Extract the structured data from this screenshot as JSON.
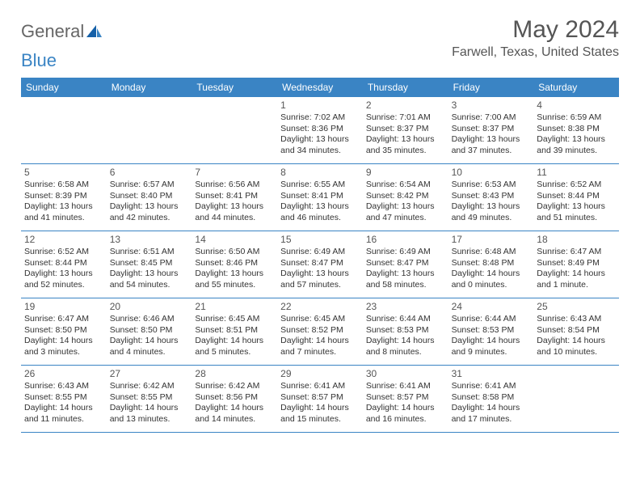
{
  "logo": {
    "text1": "General",
    "text2": "Blue"
  },
  "title": "May 2024",
  "location": "Farwell, Texas, United States",
  "header_bg": "#3a84c4",
  "header_text_color": "#ffffff",
  "day_names": [
    "Sunday",
    "Monday",
    "Tuesday",
    "Wednesday",
    "Thursday",
    "Friday",
    "Saturday"
  ],
  "weeks": [
    [
      null,
      null,
      null,
      {
        "n": "1",
        "sr": "7:02 AM",
        "ss": "8:36 PM",
        "dh": "13",
        "dm": "34"
      },
      {
        "n": "2",
        "sr": "7:01 AM",
        "ss": "8:37 PM",
        "dh": "13",
        "dm": "35"
      },
      {
        "n": "3",
        "sr": "7:00 AM",
        "ss": "8:37 PM",
        "dh": "13",
        "dm": "37"
      },
      {
        "n": "4",
        "sr": "6:59 AM",
        "ss": "8:38 PM",
        "dh": "13",
        "dm": "39"
      }
    ],
    [
      {
        "n": "5",
        "sr": "6:58 AM",
        "ss": "8:39 PM",
        "dh": "13",
        "dm": "41"
      },
      {
        "n": "6",
        "sr": "6:57 AM",
        "ss": "8:40 PM",
        "dh": "13",
        "dm": "42"
      },
      {
        "n": "7",
        "sr": "6:56 AM",
        "ss": "8:41 PM",
        "dh": "13",
        "dm": "44"
      },
      {
        "n": "8",
        "sr": "6:55 AM",
        "ss": "8:41 PM",
        "dh": "13",
        "dm": "46"
      },
      {
        "n": "9",
        "sr": "6:54 AM",
        "ss": "8:42 PM",
        "dh": "13",
        "dm": "47"
      },
      {
        "n": "10",
        "sr": "6:53 AM",
        "ss": "8:43 PM",
        "dh": "13",
        "dm": "49"
      },
      {
        "n": "11",
        "sr": "6:52 AM",
        "ss": "8:44 PM",
        "dh": "13",
        "dm": "51"
      }
    ],
    [
      {
        "n": "12",
        "sr": "6:52 AM",
        "ss": "8:44 PM",
        "dh": "13",
        "dm": "52"
      },
      {
        "n": "13",
        "sr": "6:51 AM",
        "ss": "8:45 PM",
        "dh": "13",
        "dm": "54"
      },
      {
        "n": "14",
        "sr": "6:50 AM",
        "ss": "8:46 PM",
        "dh": "13",
        "dm": "55"
      },
      {
        "n": "15",
        "sr": "6:49 AM",
        "ss": "8:47 PM",
        "dh": "13",
        "dm": "57"
      },
      {
        "n": "16",
        "sr": "6:49 AM",
        "ss": "8:47 PM",
        "dh": "13",
        "dm": "58"
      },
      {
        "n": "17",
        "sr": "6:48 AM",
        "ss": "8:48 PM",
        "dh": "14",
        "dm": "0"
      },
      {
        "n": "18",
        "sr": "6:47 AM",
        "ss": "8:49 PM",
        "dh": "14",
        "dm": "1"
      }
    ],
    [
      {
        "n": "19",
        "sr": "6:47 AM",
        "ss": "8:50 PM",
        "dh": "14",
        "dm": "3"
      },
      {
        "n": "20",
        "sr": "6:46 AM",
        "ss": "8:50 PM",
        "dh": "14",
        "dm": "4"
      },
      {
        "n": "21",
        "sr": "6:45 AM",
        "ss": "8:51 PM",
        "dh": "14",
        "dm": "5"
      },
      {
        "n": "22",
        "sr": "6:45 AM",
        "ss": "8:52 PM",
        "dh": "14",
        "dm": "7"
      },
      {
        "n": "23",
        "sr": "6:44 AM",
        "ss": "8:53 PM",
        "dh": "14",
        "dm": "8"
      },
      {
        "n": "24",
        "sr": "6:44 AM",
        "ss": "8:53 PM",
        "dh": "14",
        "dm": "9"
      },
      {
        "n": "25",
        "sr": "6:43 AM",
        "ss": "8:54 PM",
        "dh": "14",
        "dm": "10"
      }
    ],
    [
      {
        "n": "26",
        "sr": "6:43 AM",
        "ss": "8:55 PM",
        "dh": "14",
        "dm": "11"
      },
      {
        "n": "27",
        "sr": "6:42 AM",
        "ss": "8:55 PM",
        "dh": "14",
        "dm": "13"
      },
      {
        "n": "28",
        "sr": "6:42 AM",
        "ss": "8:56 PM",
        "dh": "14",
        "dm": "14"
      },
      {
        "n": "29",
        "sr": "6:41 AM",
        "ss": "8:57 PM",
        "dh": "14",
        "dm": "15"
      },
      {
        "n": "30",
        "sr": "6:41 AM",
        "ss": "8:57 PM",
        "dh": "14",
        "dm": "16"
      },
      {
        "n": "31",
        "sr": "6:41 AM",
        "ss": "8:58 PM",
        "dh": "14",
        "dm": "17"
      },
      null
    ]
  ],
  "labels": {
    "sunrise": "Sunrise:",
    "sunset": "Sunset:",
    "daylight": "Daylight:",
    "hours": "hours",
    "and": "and",
    "minutes_sfx": "minutes.",
    "minute_sfx": "minute."
  }
}
